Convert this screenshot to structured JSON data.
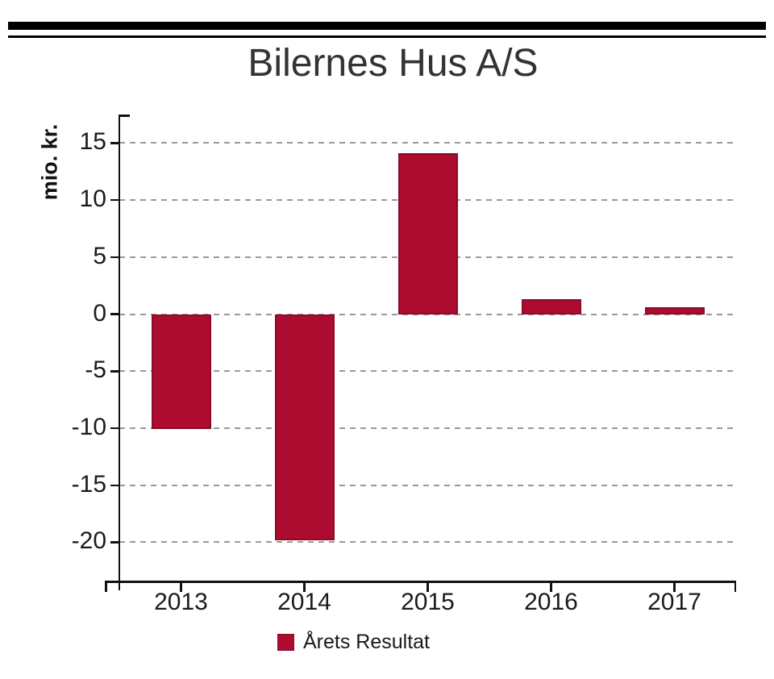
{
  "header": {
    "title": "Bilernes Hus A/S"
  },
  "chart_data": {
    "type": "bar",
    "title": "Bilernes Hus A/S",
    "xlabel": "",
    "ylabel": "mio. kr.",
    "categories": [
      "2013",
      "2014",
      "2015",
      "2016",
      "2017"
    ],
    "series": [
      {
        "name": "Årets Resultat",
        "values": [
          -10.1,
          -19.8,
          14.1,
          1.3,
          0.6
        ]
      }
    ],
    "ylim": [
      -23.5,
      17.5
    ],
    "yticks": [
      15,
      10,
      5,
      0,
      -5,
      -10,
      -15,
      -20
    ],
    "grid": "horizontal-dashed",
    "legend_position": "bottom-center",
    "colors": {
      "bar_fill": "#AC0C2F",
      "bar_border": "#8B0A26",
      "gridline": "#999999",
      "axis": "#111111"
    }
  }
}
